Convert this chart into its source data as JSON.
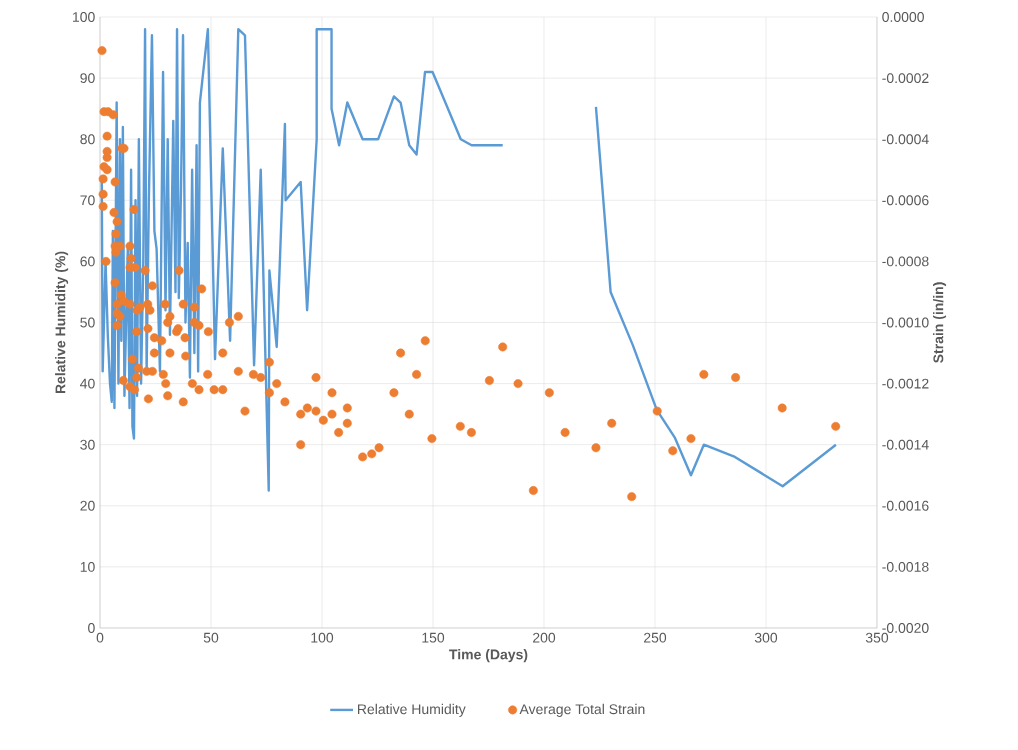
{
  "chart_data": {
    "type": "line",
    "xlabel": "Time (Days)",
    "ylabel": "Relative Humidity (%)",
    "y2label": "Strain (in/in)",
    "xlim": [
      0,
      350
    ],
    "xticks": [
      0,
      50,
      100,
      150,
      200,
      250,
      300,
      350
    ],
    "ylim": [
      0,
      100
    ],
    "yticks": [
      0,
      10,
      20,
      30,
      40,
      50,
      60,
      70,
      80,
      90,
      100
    ],
    "y2lim": [
      -0.002,
      0
    ],
    "y2ticks": [
      {
        "value": -0.002,
        "label": "-0.0020"
      },
      {
        "value": -0.0018,
        "label": "-0.0018"
      },
      {
        "value": -0.0016,
        "label": "-0.0016"
      },
      {
        "value": -0.0014,
        "label": "-0.0014"
      },
      {
        "value": -0.0012,
        "label": "-0.0012"
      },
      {
        "value": -0.001,
        "label": "-0.0010"
      },
      {
        "value": -0.0008,
        "label": "-0.0008"
      },
      {
        "value": -0.0006,
        "label": "-0.0006"
      },
      {
        "value": -0.0004,
        "label": "-0.0004"
      },
      {
        "value": -0.0002,
        "label": "-0.0002"
      },
      {
        "value": 0,
        "label": "0.0000"
      }
    ],
    "grid": true,
    "legend": "bottom",
    "series": [
      {
        "name": "Relative Humidity",
        "color": "#5b9bd5",
        "marker": "none",
        "line_style": "solid",
        "x": [
          0.8,
          1.2,
          2.5,
          3.5,
          4.5,
          5.3,
          5.8,
          6.5,
          7.5,
          8.3,
          9,
          9.6,
          10.3,
          11,
          12.5,
          13.3,
          14,
          14.6,
          15.3,
          16,
          16.7,
          17.5,
          18.5,
          19.5,
          20.3,
          21,
          22,
          23.4,
          24.5,
          25.5,
          27,
          28.4,
          29.5,
          30.5,
          31.5,
          33,
          34,
          34.7,
          35.5,
          36.5,
          37.4,
          38.5,
          39.5,
          40.5,
          41.5,
          42.5,
          43.5,
          44.2,
          45,
          48.6,
          51.8,
          55.3,
          58.6,
          62.3,
          65.3,
          69.4,
          72.4,
          76,
          76.3,
          79.6,
          83.3,
          83.6,
          90.4,
          93.3,
          97.6,
          97.6,
          104.3,
          104.3,
          107.7,
          111.4,
          118.3,
          125.3,
          132.4,
          135.4,
          139.3,
          142.6,
          146.4,
          149.8,
          162.5,
          167.4,
          181.4,
          200,
          223.4,
          230,
          240,
          250.8,
          259,
          266.2,
          272,
          286,
          307.5,
          331.5
        ],
        "values": [
          73,
          42,
          60,
          48,
          40,
          37,
          65,
          36,
          86,
          40,
          80,
          47,
          82,
          38,
          62,
          36,
          75,
          33,
          31,
          70,
          38,
          80,
          40,
          60,
          98,
          42,
          70,
          97,
          65,
          62,
          42,
          91,
          52,
          80,
          48,
          83,
          55,
          98,
          54,
          72,
          97,
          50,
          63,
          41,
          75,
          45,
          79,
          42,
          86,
          98,
          44,
          78.5,
          47,
          98,
          97,
          43,
          75,
          22.5,
          58.5,
          46,
          82.5,
          70,
          73,
          52,
          80,
          98,
          98,
          85,
          79,
          86,
          80,
          80,
          87,
          86,
          79,
          77.5,
          91,
          91,
          80,
          79,
          79,
          null,
          85.3,
          55,
          46.3,
          35.7,
          31.1,
          25,
          30,
          28,
          23.2,
          30
        ]
      },
      {
        "name": "Average Total Strain",
        "type": "scatter",
        "axis": "y2",
        "color": "#ed7d31",
        "marker": "circle",
        "x": [
          0.9,
          1.4,
          1.4,
          1.4,
          1.8,
          1.8,
          2.7,
          3.2,
          3.2,
          3.2,
          3.2,
          3.6,
          5.9,
          6.3,
          6.8,
          6.8,
          6.8,
          7.2,
          7.2,
          7.7,
          7.7,
          7.7,
          7.7,
          9,
          9,
          9.5,
          9.9,
          10.8,
          10.8,
          10.5,
          13.5,
          13.5,
          13.5,
          13.5,
          14,
          14.6,
          15.3,
          15.5,
          15.8,
          16.5,
          16.5,
          16.7,
          17.3,
          18,
          20.3,
          21,
          21.5,
          21.6,
          21.8,
          22.5,
          23.6,
          23.6,
          24.5,
          24.5,
          27.8,
          28.5,
          29.3,
          29.6,
          30.5,
          30.5,
          31.5,
          31.5,
          34.5,
          35.2,
          35.6,
          37.5,
          37.5,
          38.3,
          38.6,
          41.6,
          42.5,
          42.5,
          44.6,
          44.6,
          45.8,
          48.5,
          48.8,
          51.4,
          55.3,
          55.3,
          58.3,
          62.3,
          62.3,
          65.3,
          69.1,
          72.4,
          76.3,
          76.3,
          79.6,
          83.3,
          90.4,
          90.4,
          93.4,
          97.3,
          97.3,
          100.6,
          104.5,
          104.5,
          107.5,
          111.4,
          111.4,
          118.3,
          122.4,
          125.7,
          132.4,
          135.4,
          139.3,
          142.6,
          146.5,
          149.5,
          162.3,
          167.3,
          175.4,
          181.4,
          188.3,
          195.2,
          202.4,
          209.5,
          223.4,
          230.5,
          239.5,
          251,
          258,
          266.2,
          272,
          286.3,
          307.3,
          331.4
        ],
        "values": [
          -0.00011,
          -0.00053,
          -0.00062,
          -0.00058,
          -0.00031,
          -0.00049,
          -0.0008,
          -0.00039,
          -0.00044,
          -0.00046,
          -0.0005,
          -0.00031,
          -0.00032,
          -0.00064,
          -0.00054,
          -0.00075,
          -0.00087,
          -0.00071,
          -0.00077,
          -0.00067,
          -0.00094,
          -0.00097,
          -0.00101,
          -0.00075,
          -0.00098,
          -0.00091,
          -0.00043,
          -0.00043,
          -0.00093,
          -0.00119,
          -0.00075,
          -0.00082,
          -0.00094,
          -0.00121,
          -0.00079,
          -0.00112,
          -0.00063,
          -0.00122,
          -0.00082,
          -0.00103,
          -0.00118,
          -0.00096,
          -0.00115,
          -0.00095,
          -0.00083,
          -0.00116,
          -0.00094,
          -0.00102,
          -0.00125,
          -0.00096,
          -0.00088,
          -0.00116,
          -0.00105,
          -0.0011,
          -0.00106,
          -0.00117,
          -0.00094,
          -0.0012,
          -0.001,
          -0.00124,
          -0.00098,
          -0.0011,
          -0.00103,
          -0.00102,
          -0.00083,
          -0.00094,
          -0.00126,
          -0.00105,
          -0.00111,
          -0.0012,
          -0.00095,
          -0.001,
          -0.00101,
          -0.00122,
          -0.00089,
          -0.00117,
          -0.00103,
          -0.00122,
          -0.0011,
          -0.00122,
          -0.001,
          -0.00098,
          -0.00116,
          -0.00129,
          -0.00117,
          -0.00118,
          -0.00113,
          -0.00123,
          -0.0012,
          -0.00126,
          -0.0013,
          -0.0014,
          -0.00128,
          -0.00118,
          -0.00129,
          -0.00132,
          -0.00123,
          -0.0013,
          -0.00136,
          -0.00128,
          -0.00133,
          -0.00144,
          -0.00143,
          -0.00141,
          -0.00123,
          -0.0011,
          -0.0013,
          -0.00117,
          -0.00106,
          -0.00138,
          -0.00134,
          -0.00136,
          -0.00119,
          -0.00108,
          -0.0012,
          -0.00155,
          -0.00123,
          -0.00136,
          -0.00141,
          -0.00133,
          -0.00157,
          -0.00129,
          -0.00142,
          -0.00138,
          -0.00117,
          -0.00118,
          -0.00128,
          -0.00134
        ]
      }
    ]
  }
}
